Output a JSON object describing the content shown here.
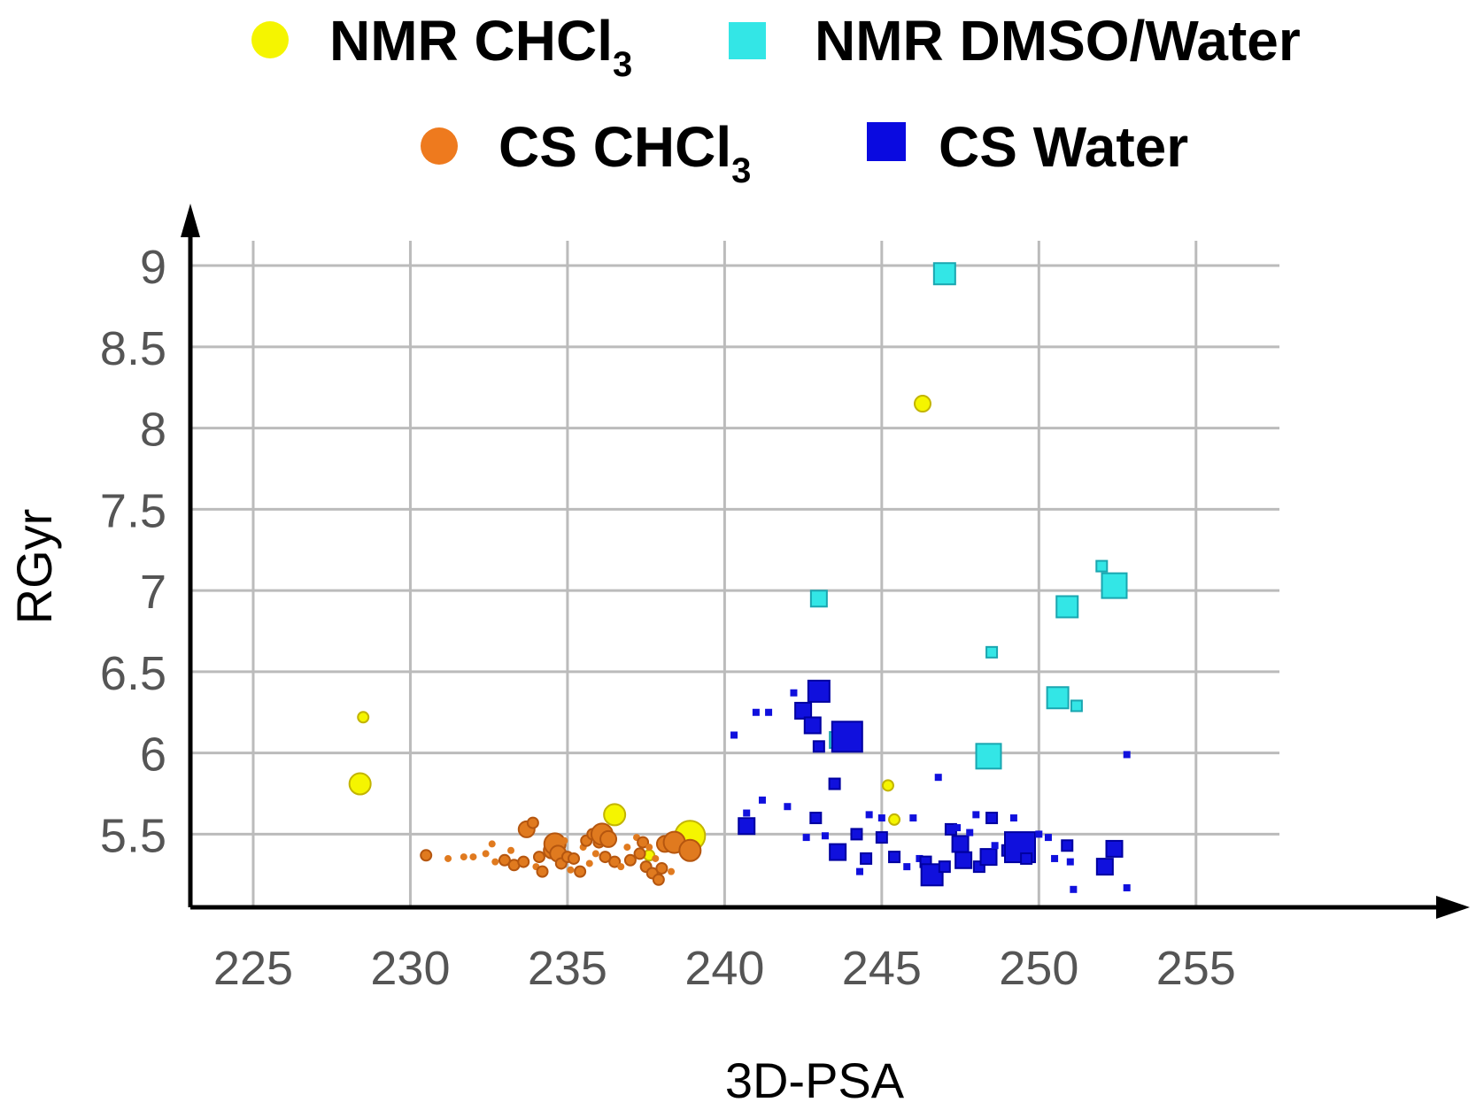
{
  "chart_data": {
    "type": "scatter",
    "title": "",
    "xlabel": "3D-PSA",
    "ylabel": "RGyr",
    "xlim": [
      223,
      258.5
    ],
    "ylim": [
      5.05,
      9.3
    ],
    "x_ticks": [
      225,
      230,
      235,
      240,
      245,
      250,
      255
    ],
    "y_ticks": [
      5.5,
      6,
      6.5,
      7,
      7.5,
      8,
      8.5,
      9
    ],
    "x_tick_labels": [
      "225",
      "230",
      "235",
      "240",
      "245",
      "250",
      "255"
    ],
    "y_tick_labels": [
      "5.5",
      "6",
      "6.5",
      "7",
      "7.5",
      "8",
      "8.5",
      "9"
    ],
    "grid": true,
    "legend_position": "top",
    "legend": [
      {
        "series": "NMR CHCl3",
        "label_main": "NMR CHCl",
        "label_sub": "3"
      },
      {
        "series": "NMR DMSO/Water",
        "label_main": "NMR DMSO/Water",
        "label_sub": ""
      },
      {
        "series": "CS CHCl3",
        "label_main": "CS CHCl",
        "label_sub": "3"
      },
      {
        "series": "CS Water",
        "label_main": "CS Water",
        "label_sub": ""
      }
    ],
    "series": [
      {
        "name": "NMR CHCl3",
        "marker": "circle",
        "color": "#f5f500",
        "edge": "#c2b400",
        "points": [
          {
            "x": 228.5,
            "y": 6.22,
            "s": 1
          },
          {
            "x": 228.4,
            "y": 5.81,
            "s": 3
          },
          {
            "x": 246.3,
            "y": 8.15,
            "s": 2
          },
          {
            "x": 236.5,
            "y": 5.62,
            "s": 3
          },
          {
            "x": 238.9,
            "y": 5.49,
            "s": 5
          },
          {
            "x": 237.6,
            "y": 5.37,
            "s": 1
          },
          {
            "x": 245.2,
            "y": 5.8,
            "s": 1
          },
          {
            "x": 245.4,
            "y": 5.59,
            "s": 1
          }
        ]
      },
      {
        "name": "NMR DMSO/Water",
        "marker": "square",
        "color": "#33e6e6",
        "edge": "#1aa6b0",
        "points": [
          {
            "x": 247.0,
            "y": 8.95,
            "s": 3
          },
          {
            "x": 243.0,
            "y": 6.95,
            "s": 2
          },
          {
            "x": 250.9,
            "y": 6.9,
            "s": 3
          },
          {
            "x": 252.4,
            "y": 7.03,
            "s": 4
          },
          {
            "x": 252.0,
            "y": 7.15,
            "s": 1
          },
          {
            "x": 248.5,
            "y": 6.62,
            "s": 1
          },
          {
            "x": 250.6,
            "y": 6.34,
            "s": 3
          },
          {
            "x": 251.2,
            "y": 6.29,
            "s": 1
          },
          {
            "x": 243.6,
            "y": 6.08,
            "s": 2
          },
          {
            "x": 248.4,
            "y": 5.98,
            "s": 4
          }
        ]
      },
      {
        "name": "CS CHCl3",
        "marker": "circle",
        "color": "#e07a1f",
        "edge": "#b5560f",
        "points": [
          {
            "x": 230.5,
            "y": 5.37,
            "s": 1
          },
          {
            "x": 231.2,
            "y": 5.35,
            "s": 0
          },
          {
            "x": 231.7,
            "y": 5.36,
            "s": 0
          },
          {
            "x": 232.0,
            "y": 5.36,
            "s": 0
          },
          {
            "x": 232.4,
            "y": 5.38,
            "s": 0
          },
          {
            "x": 232.6,
            "y": 5.44,
            "s": 0
          },
          {
            "x": 232.7,
            "y": 5.33,
            "s": 0
          },
          {
            "x": 233.0,
            "y": 5.34,
            "s": 1
          },
          {
            "x": 233.2,
            "y": 5.4,
            "s": 0
          },
          {
            "x": 233.3,
            "y": 5.31,
            "s": 1
          },
          {
            "x": 233.6,
            "y": 5.33,
            "s": 1
          },
          {
            "x": 233.7,
            "y": 5.53,
            "s": 2
          },
          {
            "x": 233.9,
            "y": 5.57,
            "s": 1
          },
          {
            "x": 234.0,
            "y": 5.3,
            "s": 0
          },
          {
            "x": 234.1,
            "y": 5.36,
            "s": 1
          },
          {
            "x": 234.2,
            "y": 5.27,
            "s": 1
          },
          {
            "x": 234.4,
            "y": 5.47,
            "s": 0
          },
          {
            "x": 234.5,
            "y": 5.4,
            "s": 2
          },
          {
            "x": 234.6,
            "y": 5.44,
            "s": 3
          },
          {
            "x": 234.7,
            "y": 5.38,
            "s": 2
          },
          {
            "x": 234.8,
            "y": 5.32,
            "s": 1
          },
          {
            "x": 234.9,
            "y": 5.46,
            "s": 0
          },
          {
            "x": 235.0,
            "y": 5.36,
            "s": 1
          },
          {
            "x": 235.1,
            "y": 5.28,
            "s": 0
          },
          {
            "x": 235.2,
            "y": 5.35,
            "s": 1
          },
          {
            "x": 235.4,
            "y": 5.27,
            "s": 1
          },
          {
            "x": 235.5,
            "y": 5.42,
            "s": 0
          },
          {
            "x": 235.6,
            "y": 5.46,
            "s": 1
          },
          {
            "x": 235.7,
            "y": 5.32,
            "s": 0
          },
          {
            "x": 235.8,
            "y": 5.5,
            "s": 1
          },
          {
            "x": 235.9,
            "y": 5.38,
            "s": 0
          },
          {
            "x": 236.0,
            "y": 5.45,
            "s": 1
          },
          {
            "x": 236.1,
            "y": 5.5,
            "s": 3
          },
          {
            "x": 236.2,
            "y": 5.36,
            "s": 1
          },
          {
            "x": 236.3,
            "y": 5.47,
            "s": 2
          },
          {
            "x": 236.5,
            "y": 5.33,
            "s": 1
          },
          {
            "x": 236.7,
            "y": 5.3,
            "s": 0
          },
          {
            "x": 236.9,
            "y": 5.42,
            "s": 0
          },
          {
            "x": 237.0,
            "y": 5.34,
            "s": 1
          },
          {
            "x": 237.2,
            "y": 5.48,
            "s": 0
          },
          {
            "x": 237.3,
            "y": 5.38,
            "s": 1
          },
          {
            "x": 237.4,
            "y": 5.45,
            "s": 1
          },
          {
            "x": 237.5,
            "y": 5.3,
            "s": 1
          },
          {
            "x": 237.6,
            "y": 5.42,
            "s": 0
          },
          {
            "x": 237.7,
            "y": 5.26,
            "s": 1
          },
          {
            "x": 237.8,
            "y": 5.35,
            "s": 0
          },
          {
            "x": 237.9,
            "y": 5.22,
            "s": 1
          },
          {
            "x": 238.0,
            "y": 5.29,
            "s": 1
          },
          {
            "x": 238.1,
            "y": 5.44,
            "s": 2
          },
          {
            "x": 238.3,
            "y": 5.27,
            "s": 0
          },
          {
            "x": 238.4,
            "y": 5.45,
            "s": 3
          },
          {
            "x": 238.9,
            "y": 5.4,
            "s": 3
          }
        ]
      },
      {
        "name": "CS Water",
        "marker": "square",
        "color": "#1010dd",
        "edge": "#0000a0",
        "points": [
          {
            "x": 240.3,
            "y": 6.11,
            "s": 0
          },
          {
            "x": 240.7,
            "y": 5.63,
            "s": 0
          },
          {
            "x": 240.7,
            "y": 5.55,
            "s": 2
          },
          {
            "x": 241.0,
            "y": 6.25,
            "s": 0
          },
          {
            "x": 241.2,
            "y": 5.71,
            "s": 0
          },
          {
            "x": 241.4,
            "y": 6.25,
            "s": 0
          },
          {
            "x": 242.0,
            "y": 5.67,
            "s": 0
          },
          {
            "x": 242.2,
            "y": 6.37,
            "s": 0
          },
          {
            "x": 242.5,
            "y": 6.26,
            "s": 2
          },
          {
            "x": 242.6,
            "y": 5.48,
            "s": 0
          },
          {
            "x": 242.8,
            "y": 6.17,
            "s": 2
          },
          {
            "x": 242.9,
            "y": 5.6,
            "s": 1
          },
          {
            "x": 243.0,
            "y": 6.38,
            "s": 3
          },
          {
            "x": 243.0,
            "y": 6.04,
            "s": 1
          },
          {
            "x": 243.2,
            "y": 5.49,
            "s": 0
          },
          {
            "x": 243.5,
            "y": 5.81,
            "s": 1
          },
          {
            "x": 243.6,
            "y": 5.39,
            "s": 2
          },
          {
            "x": 243.9,
            "y": 6.1,
            "s": 5
          },
          {
            "x": 244.2,
            "y": 5.5,
            "s": 1
          },
          {
            "x": 244.3,
            "y": 5.27,
            "s": 0
          },
          {
            "x": 244.5,
            "y": 5.35,
            "s": 1
          },
          {
            "x": 244.6,
            "y": 5.62,
            "s": 0
          },
          {
            "x": 245.0,
            "y": 5.6,
            "s": 0
          },
          {
            "x": 245.0,
            "y": 5.48,
            "s": 1
          },
          {
            "x": 245.4,
            "y": 5.36,
            "s": 1
          },
          {
            "x": 245.8,
            "y": 5.3,
            "s": 0
          },
          {
            "x": 246.0,
            "y": 5.6,
            "s": 0
          },
          {
            "x": 246.2,
            "y": 5.35,
            "s": 0
          },
          {
            "x": 246.4,
            "y": 5.33,
            "s": 1
          },
          {
            "x": 246.6,
            "y": 5.25,
            "s": 3
          },
          {
            "x": 246.8,
            "y": 5.85,
            "s": 0
          },
          {
            "x": 247.0,
            "y": 5.3,
            "s": 1
          },
          {
            "x": 247.2,
            "y": 5.53,
            "s": 1
          },
          {
            "x": 247.4,
            "y": 5.54,
            "s": 0
          },
          {
            "x": 247.5,
            "y": 5.44,
            "s": 2
          },
          {
            "x": 247.6,
            "y": 5.34,
            "s": 2
          },
          {
            "x": 247.8,
            "y": 5.51,
            "s": 0
          },
          {
            "x": 248.0,
            "y": 5.62,
            "s": 0
          },
          {
            "x": 248.1,
            "y": 5.3,
            "s": 1
          },
          {
            "x": 248.4,
            "y": 5.36,
            "s": 2
          },
          {
            "x": 248.5,
            "y": 5.6,
            "s": 1
          },
          {
            "x": 248.6,
            "y": 5.43,
            "s": 0
          },
          {
            "x": 249.0,
            "y": 5.4,
            "s": 1
          },
          {
            "x": 249.2,
            "y": 5.6,
            "s": 0
          },
          {
            "x": 249.4,
            "y": 5.42,
            "s": 5
          },
          {
            "x": 249.6,
            "y": 5.35,
            "s": 1
          },
          {
            "x": 250.0,
            "y": 5.5,
            "s": 0
          },
          {
            "x": 250.3,
            "y": 5.48,
            "s": 0
          },
          {
            "x": 250.5,
            "y": 5.35,
            "s": 0
          },
          {
            "x": 250.9,
            "y": 5.43,
            "s": 1
          },
          {
            "x": 251.0,
            "y": 5.33,
            "s": 0
          },
          {
            "x": 251.1,
            "y": 5.16,
            "s": 0
          },
          {
            "x": 252.1,
            "y": 5.3,
            "s": 2
          },
          {
            "x": 252.4,
            "y": 5.41,
            "s": 2
          },
          {
            "x": 252.8,
            "y": 5.99,
            "s": 0
          },
          {
            "x": 252.8,
            "y": 5.17,
            "s": 0
          }
        ]
      }
    ]
  },
  "colors": {
    "grid": "#bbbbbb",
    "axis": "#000000",
    "tick_label": "#555555",
    "background": "#ffffff"
  }
}
